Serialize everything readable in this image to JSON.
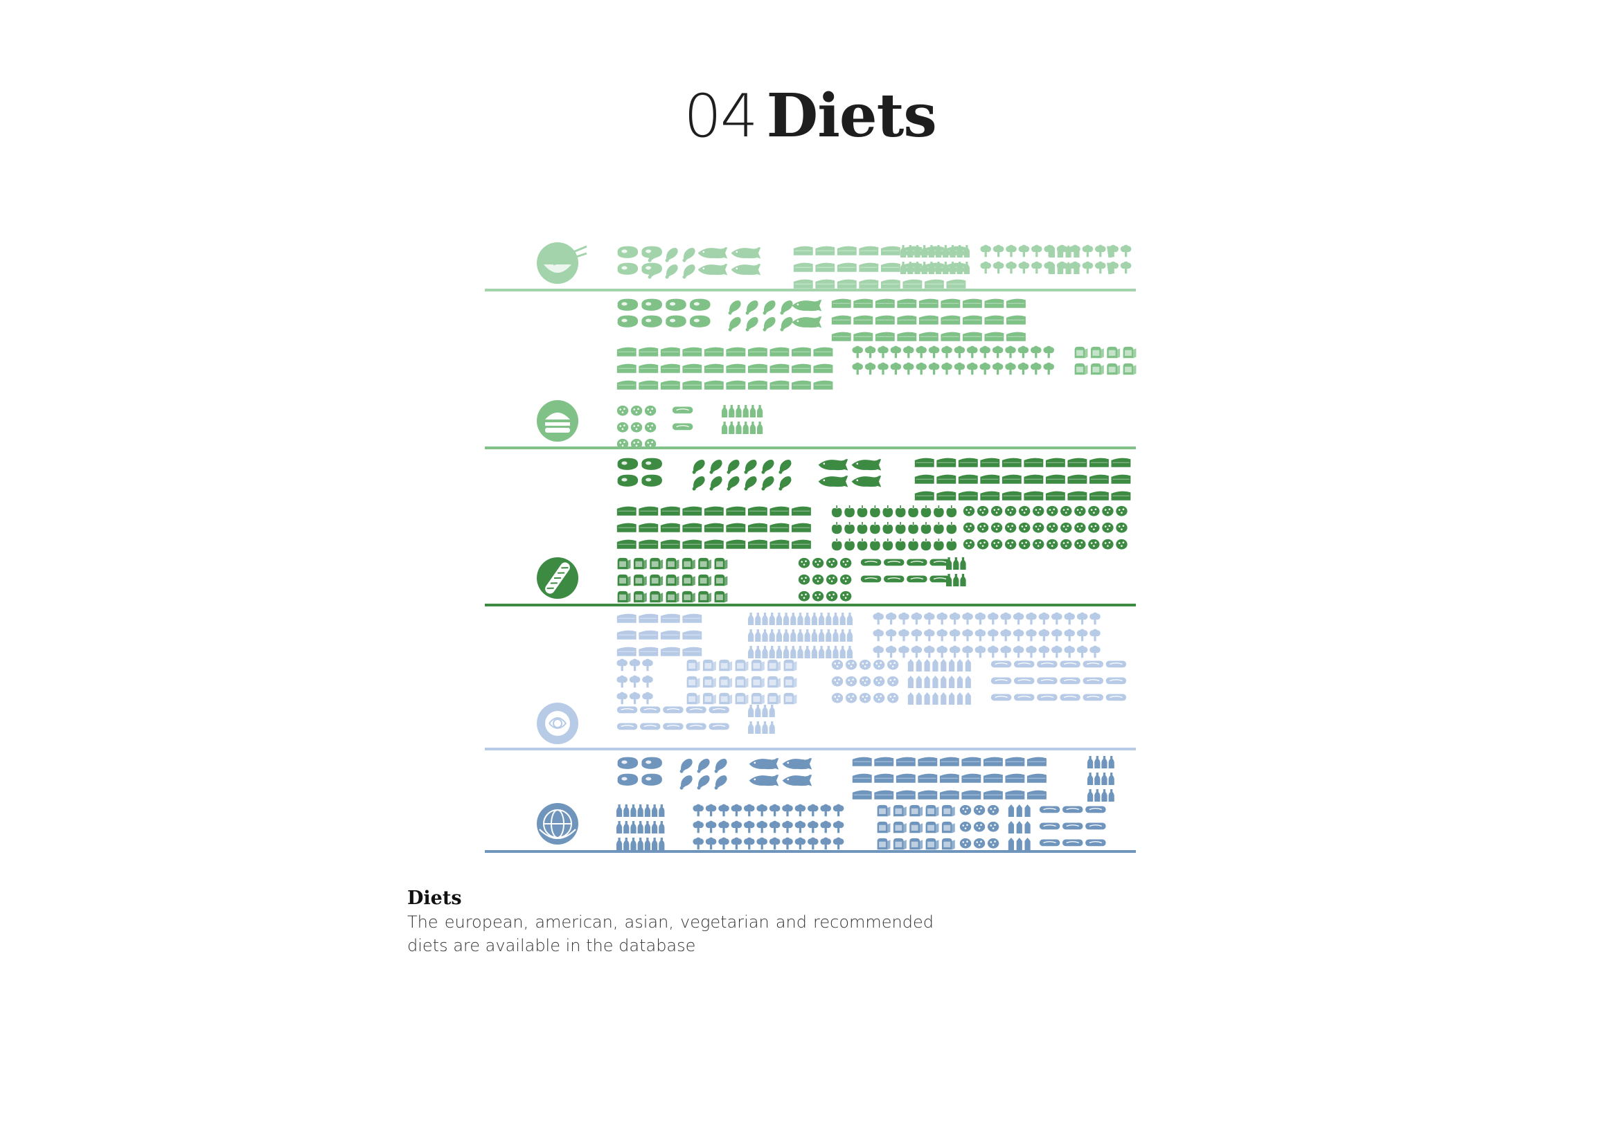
{
  "title": {
    "number": "04",
    "word": "Diets"
  },
  "caption": {
    "heading": "Diets",
    "body": "The european, american, asian, vegetarian and recommended diets are available in the database"
  },
  "diets": [
    {
      "icon": "chopsticks-bowl-icon",
      "color": "#a3d3ab"
    },
    {
      "icon": "burger-icon",
      "color": "#7fc187"
    },
    {
      "icon": "baguette-icon",
      "color": "#3d8a43"
    },
    {
      "icon": "cabbage-icon",
      "color": "#b7cbe7"
    },
    {
      "icon": "globe-emblem-icon",
      "color": "#6f95bd"
    }
  ],
  "food_icon_names": [
    "steak-icon",
    "drumstick-icon",
    "fish-icon",
    "cheese-icon",
    "bottle-icon",
    "broccoli-icon",
    "bread-icon",
    "cookie-icon",
    "sausage-icon",
    "apple-icon",
    "milk-carton-icon",
    "glass-icon"
  ]
}
